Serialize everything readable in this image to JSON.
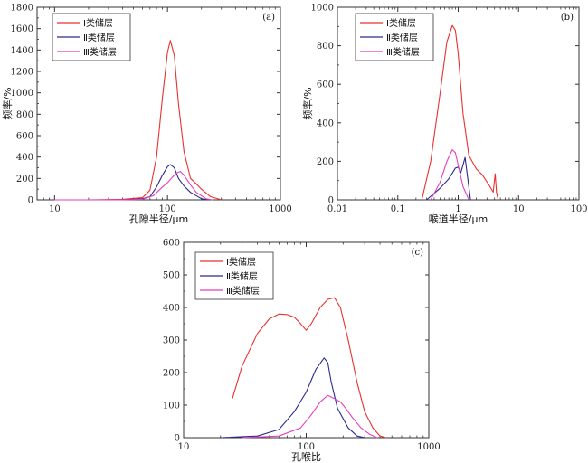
{
  "colors": {
    "class_I": "#e8322e",
    "class_II": "#2a2a8c",
    "class_III": "#e43fbf"
  },
  "chart_data": [
    {
      "type": "line",
      "panel_label": "(a)",
      "xlabel": "孔隙半径/μm",
      "ylabel": "频率/%",
      "xscale": "log",
      "xlim": [
        7,
        1000
      ],
      "ylim": [
        0,
        1800
      ],
      "xticks": [
        {
          "v": 10,
          "label": "10"
        },
        {
          "v": 100,
          "label": "100"
        },
        {
          "v": 1000,
          "label": "1000"
        }
      ],
      "yticks": [
        0,
        200,
        400,
        600,
        800,
        1000,
        1200,
        1400,
        1600,
        1800
      ],
      "legend": "top-left",
      "series": [
        {
          "name": "Ⅰ类储层",
          "color": "#e8322e",
          "x": [
            10,
            20,
            40,
            60,
            70,
            80,
            90,
            100,
            106,
            115,
            125,
            140,
            160,
            180,
            200,
            240,
            300
          ],
          "y": [
            0,
            0,
            5,
            20,
            90,
            400,
            950,
            1380,
            1490,
            1350,
            900,
            450,
            200,
            150,
            100,
            30,
            0
          ]
        },
        {
          "name": "Ⅱ类储层",
          "color": "#2a2a8c",
          "x": [
            10,
            20,
            40,
            60,
            70,
            80,
            90,
            100,
            106,
            115,
            125,
            140,
            160,
            200,
            230
          ],
          "y": [
            0,
            0,
            0,
            10,
            30,
            120,
            230,
            310,
            330,
            300,
            200,
            130,
            70,
            10,
            0
          ]
        },
        {
          "name": "Ⅲ类储层",
          "color": "#e43fbf",
          "x": [
            10,
            20,
            40,
            60,
            75,
            90,
            100,
            110,
            120,
            130,
            140,
            160,
            180,
            220,
            250
          ],
          "y": [
            0,
            0,
            0,
            5,
            40,
            120,
            160,
            210,
            250,
            265,
            230,
            140,
            70,
            10,
            0
          ]
        }
      ]
    },
    {
      "type": "line",
      "panel_label": "(b)",
      "xlabel": "喉道半径/μm",
      "ylabel": "频率/%",
      "xscale": "log",
      "xlim": [
        0.01,
        100
      ],
      "ylim": [
        0,
        1000
      ],
      "xticks": [
        {
          "v": 0.01,
          "label": "0.01"
        },
        {
          "v": 0.1,
          "label": "0.1"
        },
        {
          "v": 1,
          "label": "1"
        },
        {
          "v": 10,
          "label": "10"
        },
        {
          "v": 100,
          "label": "100"
        }
      ],
      "yticks": [
        0,
        200,
        400,
        600,
        800,
        1000
      ],
      "legend": "top-right",
      "series": [
        {
          "name": "Ⅰ类储层",
          "color": "#e8322e",
          "x": [
            0.25,
            0.35,
            0.5,
            0.65,
            0.8,
            0.9,
            1.0,
            1.2,
            1.5,
            2.0,
            2.5,
            3.2,
            3.8,
            4.1,
            4.3,
            4.6
          ],
          "y": [
            0,
            200,
            550,
            820,
            905,
            880,
            760,
            450,
            230,
            160,
            130,
            80,
            40,
            135,
            40,
            0
          ]
        },
        {
          "name": "Ⅱ类储层",
          "color": "#2a2a8c",
          "x": [
            0.3,
            0.5,
            0.7,
            0.9,
            1.0,
            1.1,
            1.2,
            1.3,
            1.6
          ],
          "y": [
            0,
            60,
            110,
            165,
            170,
            140,
            180,
            220,
            0
          ]
        },
        {
          "name": "Ⅲ类储层",
          "color": "#e43fbf",
          "x": [
            0.35,
            0.5,
            0.65,
            0.8,
            0.9,
            1.0,
            1.2,
            1.5
          ],
          "y": [
            0,
            90,
            200,
            260,
            245,
            180,
            70,
            0
          ]
        }
      ]
    },
    {
      "type": "line",
      "panel_label": "(c)",
      "xlabel": "孔喉比",
      "xscale": "log",
      "xlim": [
        10,
        1000
      ],
      "ylim": [
        0,
        600
      ],
      "xticks": [
        {
          "v": 10,
          "label": "10"
        },
        {
          "v": 100,
          "label": "100"
        },
        {
          "v": 1000,
          "label": "1000"
        }
      ],
      "yticks": [
        0,
        100,
        200,
        300,
        400,
        500,
        600
      ],
      "legend": "top-left",
      "series": [
        {
          "name": "Ⅰ类储层",
          "color": "#e8322e",
          "x": [
            25,
            30,
            40,
            50,
            60,
            70,
            80,
            90,
            100,
            110,
            130,
            150,
            170,
            190,
            220,
            260,
            300,
            350,
            400,
            450
          ],
          "y": [
            120,
            220,
            320,
            365,
            380,
            378,
            370,
            350,
            330,
            350,
            400,
            425,
            430,
            400,
            300,
            170,
            80,
            30,
            5,
            0
          ]
        },
        {
          "name": "Ⅱ类储层",
          "color": "#2a2a8c",
          "x": [
            20,
            40,
            60,
            80,
            100,
            120,
            140,
            150,
            160,
            180,
            220,
            260,
            300
          ],
          "y": [
            0,
            5,
            25,
            80,
            140,
            210,
            245,
            230,
            170,
            90,
            30,
            5,
            0
          ]
        },
        {
          "name": "Ⅲ类储层",
          "color": "#e43fbf",
          "x": [
            30,
            60,
            90,
            110,
            130,
            150,
            170,
            190,
            210,
            240,
            280,
            330,
            380
          ],
          "y": [
            0,
            5,
            30,
            70,
            110,
            130,
            120,
            110,
            90,
            60,
            30,
            10,
            0
          ]
        }
      ]
    }
  ]
}
